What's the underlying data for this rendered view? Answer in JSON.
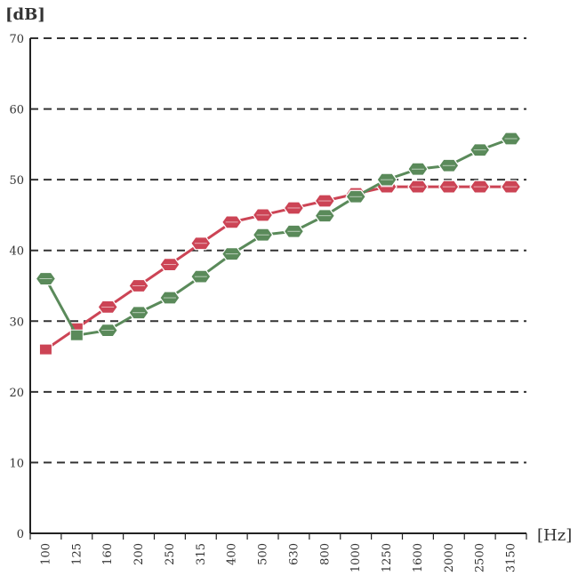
{
  "chart_data": {
    "type": "line",
    "ylabel": "[dB]",
    "xlabel": "[Hz]",
    "ylim": [
      0,
      70
    ],
    "yticks": [
      0,
      10,
      20,
      30,
      40,
      50,
      60,
      70
    ],
    "grid": true,
    "categories": [
      "100",
      "125",
      "160",
      "200",
      "250",
      "315",
      "400",
      "500",
      "630",
      "800",
      "1000",
      "1250",
      "1600",
      "2000",
      "2500",
      "3150"
    ],
    "series": [
      {
        "color": "#cc4455",
        "values": [
          26,
          29,
          32,
          35,
          38,
          41,
          44,
          45,
          46,
          47,
          48,
          49,
          49,
          49,
          49,
          49
        ]
      },
      {
        "color": "#5a8a5a",
        "values": [
          36,
          28,
          28.7,
          31.2,
          33.3,
          36.3,
          39.5,
          42.2,
          42.7,
          44.9,
          47.6,
          50,
          51.5,
          52,
          54.2,
          55.8
        ]
      }
    ]
  }
}
